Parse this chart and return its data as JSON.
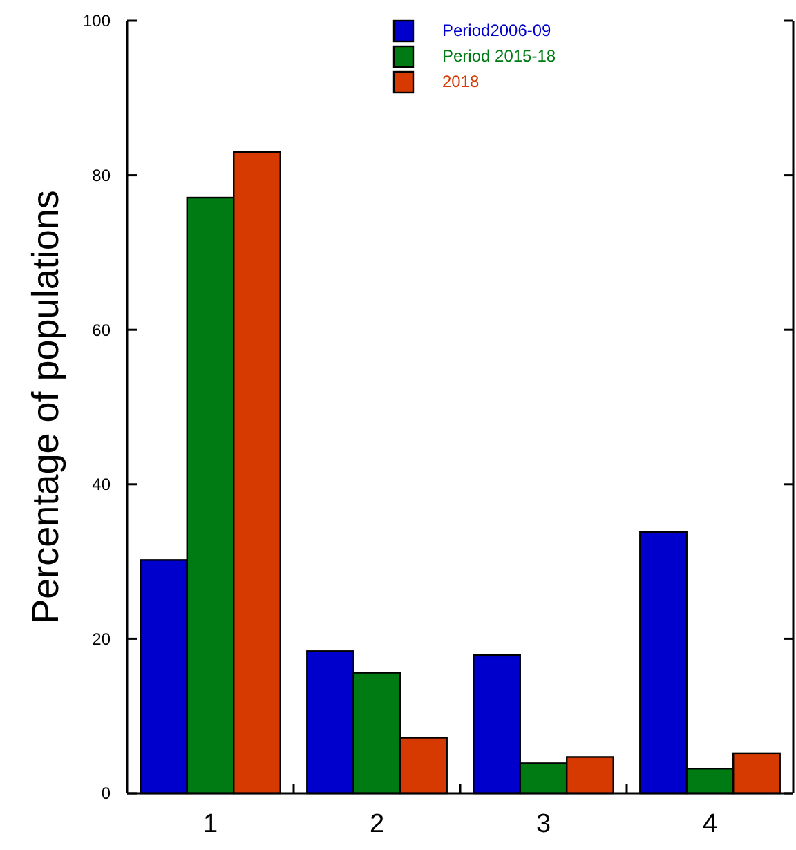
{
  "chart_data": {
    "type": "bar",
    "ylabel": "Percentage of populations",
    "categories": [
      "1",
      "2",
      "3",
      "4"
    ],
    "series": [
      {
        "name": "Period2006-09",
        "color": "#0000cc",
        "values": [
          30.2,
          18.4,
          17.9,
          33.8
        ]
      },
      {
        "name": "Period 2015-18",
        "color": "#007a12",
        "values": [
          77.1,
          15.6,
          3.9,
          3.2
        ]
      },
      {
        "name": "2018",
        "color": "#d63a00",
        "values": [
          83.0,
          7.2,
          4.7,
          5.2
        ]
      }
    ],
    "ylim": [
      0,
      100
    ],
    "yticks": [
      0,
      20,
      40,
      60,
      80,
      100
    ],
    "grid": false,
    "legend": "top"
  }
}
